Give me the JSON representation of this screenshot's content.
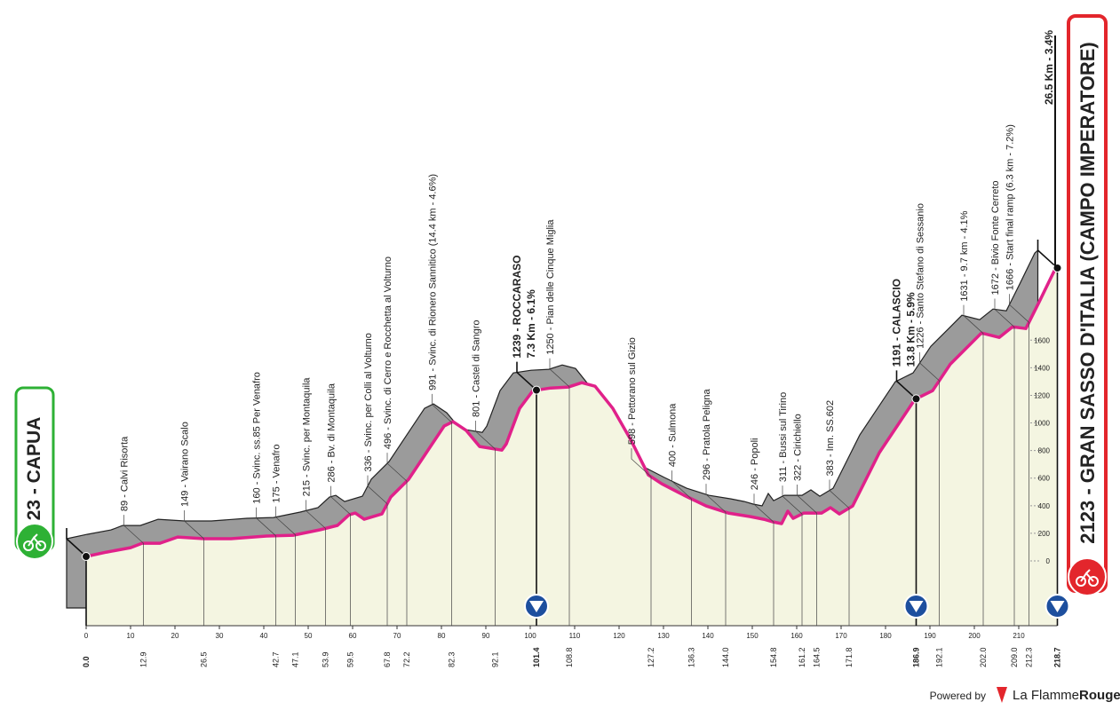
{
  "chart_data": {
    "type": "area",
    "start": "23 - CAPUA",
    "finish": "2123 - GRAN SASSO D'ITALIA (CAMPO IMPERATORE)",
    "final_climb": "26.5 Km - 3.4%",
    "x": [
      0,
      4.6,
      10,
      12.6,
      16.6,
      20.6,
      26.6,
      32.6,
      40.6,
      46.6,
      52.6,
      56.6,
      59.2,
      60.6,
      62.6,
      66.6,
      68.6,
      72.6,
      76.6,
      80.6,
      82.6,
      85.6,
      88.6,
      93.6,
      94.6,
      97.6,
      100.6,
      104.6,
      108.6,
      111.6,
      114.6,
      118.6,
      122.6,
      126.6,
      129.6,
      134.6,
      139.6,
      144.6,
      149.6,
      152.6,
      154.6,
      156.6,
      158,
      159.2,
      161.6,
      165.6,
      167.6,
      169.6,
      172.6,
      175.6,
      178.6,
      182.6,
      186.6,
      190.6,
      194.6,
      198.6,
      201.6,
      205.6,
      208.6,
      211.6,
      214.6,
      218,
      218.7
    ],
    "values": [
      32,
      64,
      96,
      128,
      128,
      173,
      161,
      161,
      180,
      186,
      225,
      257,
      334,
      347,
      302,
      340,
      463,
      591,
      784,
      977,
      1009,
      945,
      829,
      803,
      848,
      1105,
      1234,
      1253,
      1260,
      1292,
      1266,
      1105,
      880,
      623,
      559,
      476,
      398,
      347,
      321,
      302,
      283,
      270,
      360,
      308,
      347,
      347,
      386,
      340,
      398,
      591,
      784,
      977,
      1170,
      1234,
      1427,
      1555,
      1652,
      1620,
      1697,
      1684,
      1877,
      2102,
      2123
    ],
    "color": "#e0218a",
    "fill": "#f4f5e1",
    "relief_color": "#9b9b9b",
    "xlim": [
      0,
      218.7
    ],
    "ylim": [
      0,
      2200
    ],
    "xticks": [
      0,
      10,
      20,
      30,
      40,
      50,
      60,
      70,
      80,
      90,
      100,
      110,
      120,
      130,
      140,
      150,
      160,
      170,
      180,
      190,
      200,
      210
    ],
    "yticks": [
      0,
      200,
      400,
      600,
      800,
      1000,
      1200,
      1400,
      1600
    ],
    "waypoints": [
      {
        "km": {
          "value": 0,
          "label": "0.0"
        },
        "bold": true,
        "dot": true
      },
      {
        "km": 12.9,
        "label": "89 - Calvi Risorta"
      },
      {
        "km": 26.5,
        "label": "149 - Vairano Scalo"
      },
      {
        "km": 42.7,
        "label": "160 - Svinc. ss.85 Per Venafro"
      },
      {
        "km": 47.1,
        "label": "175 - Venafro"
      },
      {
        "km": 53.9,
        "label": "215 - Svinc. per Montaquila"
      },
      {
        "km": 59.5,
        "label": "286 - Bv. di Montaquila"
      },
      {
        "km": 67.8,
        "label": "336 - Svinc. per Colli al Volturno"
      },
      {
        "km": 72.2,
        "label": "496 - Svinc. di Cerro e Rocchetta al Volturno"
      },
      {
        "km": 82.3,
        "label": "991 - Svinc. di Rionero Sannitico (14.4 km - 4.6%)"
      },
      {
        "km": 92.1,
        "label": "801 - Castel di Sangro"
      },
      {
        "km": 101.4,
        "label": "1239 - ROCCARASO",
        "climb": "7.3 Km - 6.1%",
        "bold": true,
        "dot": true,
        "kom": true
      },
      {
        "km": 108.8,
        "label": "1250 - Pian delle Cinque Miglia"
      },
      {
        "km": 127.2,
        "label": "598 - Pettorano sul Gizio"
      },
      {
        "km": 136.3,
        "label": "400 - Sulmona"
      },
      {
        "km": {
          "value": 144,
          "label": "144.0"
        },
        "label": "296 - Pratola Peligna"
      },
      {
        "km": 154.8,
        "label": "246 - Popoli"
      },
      {
        "km": 161.2,
        "label": "311 - Bussi sul Tirino"
      },
      {
        "km": 164.5,
        "label": "322 - Cirichiello"
      },
      {
        "km": 171.8,
        "label": "383 - Inn. SS.602"
      },
      {
        "km": 186.9,
        "label": "1191 - CALASCIO",
        "climb": "13.8 Km - 5.9%",
        "bold": true,
        "dot": true,
        "kom": true
      },
      {
        "km": 192.1,
        "label": "1226 - Santo Stefano di Sessanio"
      },
      {
        "km": {
          "value": 202,
          "label": "202.0"
        },
        "label": "1631 - 9.7 km - 4.1%"
      },
      {
        "km": {
          "value": 209,
          "label": "209.0"
        },
        "label": "1672 - Bivio Fonte Cerreto"
      },
      {
        "km": 212.3,
        "label": "1666 - Start final ramp (6.3 km - 7.2%)"
      },
      {
        "km": 218.7,
        "bold": true,
        "dot": true,
        "kom": true
      }
    ]
  },
  "footer": {
    "powered_by": "Powered by",
    "brand": "La Flamme",
    "brand_bold": "Rouge"
  }
}
